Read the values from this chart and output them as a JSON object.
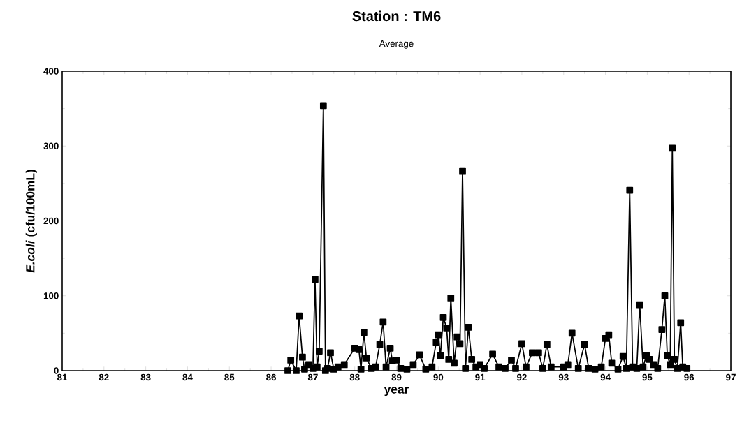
{
  "chart_data": {
    "type": "line",
    "title": "Station : TM6",
    "subtitle": "Average",
    "xlabel": "year",
    "ylabel": "*E.coli* (cfu/100mL)",
    "xlim": [
      81,
      97
    ],
    "xticks": [
      81,
      82,
      83,
      84,
      85,
      86,
      87,
      88,
      89,
      90,
      91,
      92,
      93,
      94,
      95,
      96,
      97
    ],
    "ylim": [
      0,
      400
    ],
    "yticks": [
      0,
      100,
      200,
      300,
      400
    ],
    "grid": false,
    "marker": "square",
    "line_style": "solid",
    "series": [
      {
        "color": "#000000",
        "x": [
          86.4,
          86.47,
          86.6,
          86.67,
          86.75,
          86.8,
          86.9,
          87.0,
          87.05,
          87.1,
          87.15,
          87.25,
          87.3,
          87.35,
          87.42,
          87.5,
          87.6,
          87.75,
          88.0,
          88.1,
          88.15,
          88.22,
          88.28,
          88.4,
          88.5,
          88.6,
          88.68,
          88.75,
          88.85,
          88.9,
          89.0,
          89.1,
          89.25,
          89.4,
          89.55,
          89.7,
          89.85,
          89.95,
          90.0,
          90.05,
          90.12,
          90.2,
          90.25,
          90.3,
          90.38,
          90.45,
          90.52,
          90.58,
          90.65,
          90.72,
          90.8,
          90.9,
          91.0,
          91.1,
          91.3,
          91.45,
          91.6,
          91.75,
          91.85,
          92.0,
          92.1,
          92.25,
          92.4,
          92.5,
          92.6,
          92.7,
          93.0,
          93.1,
          93.2,
          93.35,
          93.5,
          93.6,
          93.75,
          93.9,
          94.0,
          94.08,
          94.15,
          94.3,
          94.42,
          94.5,
          94.58,
          94.65,
          94.75,
          94.82,
          94.9,
          94.98,
          95.05,
          95.15,
          95.25,
          95.35,
          95.42,
          95.48,
          95.55,
          95.6,
          95.65,
          95.72,
          95.8,
          95.85,
          95.95
        ],
        "values": [
          0,
          14,
          0,
          73,
          18,
          2,
          8,
          3,
          122,
          5,
          26,
          354,
          0,
          3,
          24,
          2,
          5,
          8,
          30,
          28,
          2,
          51,
          17,
          3,
          5,
          35,
          65,
          5,
          30,
          13,
          14,
          3,
          2,
          8,
          21,
          2,
          5,
          38,
          48,
          20,
          71,
          57,
          15,
          97,
          10,
          45,
          36,
          267,
          3,
          58,
          15,
          5,
          8,
          3,
          22,
          5,
          3,
          14,
          3,
          36,
          5,
          24,
          24,
          3,
          35,
          5,
          5,
          8,
          50,
          3,
          35,
          3,
          2,
          5,
          43,
          48,
          10,
          2,
          19,
          3,
          241,
          5,
          3,
          88,
          5,
          20,
          15,
          8,
          3,
          55,
          100,
          20,
          8,
          297,
          15,
          3,
          64,
          5,
          3
        ]
      }
    ]
  }
}
